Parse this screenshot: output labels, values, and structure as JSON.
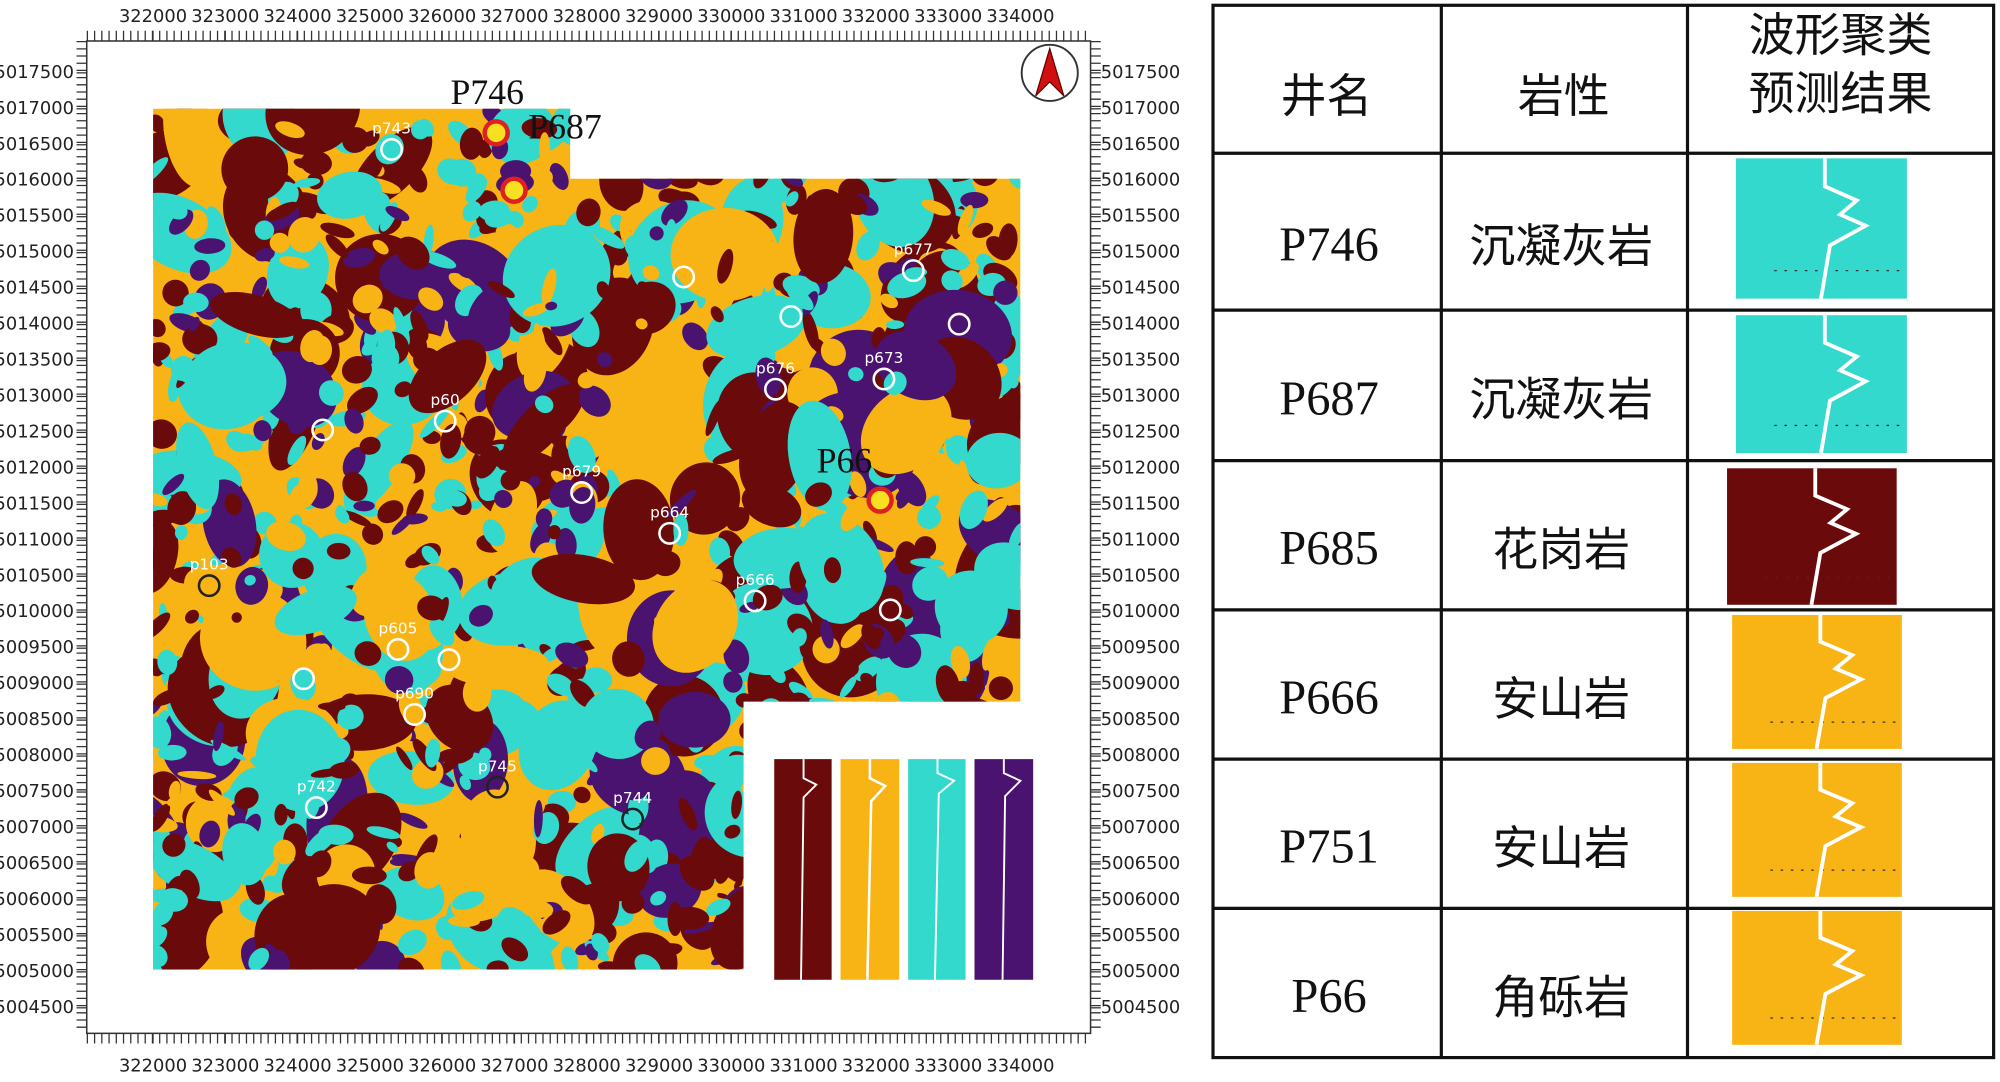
{
  "map": {
    "xlim": [
      321083,
      334970
    ],
    "ylim": [
      5004145,
      5017943
    ],
    "xticks": [
      322000,
      323000,
      324000,
      325000,
      326000,
      327000,
      328000,
      329000,
      330000,
      331000,
      332000,
      333000,
      334000
    ],
    "yticks": [
      5004500,
      5005000,
      5005500,
      5006000,
      5006500,
      5007000,
      5007500,
      5008000,
      5008500,
      5009000,
      5009500,
      5010000,
      5010500,
      5011000,
      5011500,
      5012000,
      5012500,
      5013000,
      5013500,
      5014000,
      5014500,
      5015000,
      5015500,
      5016000,
      5016500,
      5017000,
      5017500
    ],
    "highlighted_wells": [
      "P746",
      "P687",
      "P66"
    ],
    "wells": [
      "p743",
      "p677",
      "p676",
      "p673",
      "p60",
      "p679",
      "p664",
      "p666",
      "p103",
      "p605",
      "p690",
      "p742",
      "p745",
      "p744"
    ]
  },
  "table": {
    "header": {
      "well": "井名",
      "lithology": "岩性",
      "result": [
        "波形聚类",
        "预测结果"
      ]
    },
    "rows": [
      [
        "P746",
        "沉凝灰岩"
      ],
      [
        "P687",
        "沉凝灰岩"
      ],
      [
        "P685",
        "花岗岩"
      ],
      [
        "P666",
        "安山岩"
      ],
      [
        "P751",
        "安山岩"
      ],
      [
        "P66",
        "角砾岩"
      ]
    ]
  }
}
